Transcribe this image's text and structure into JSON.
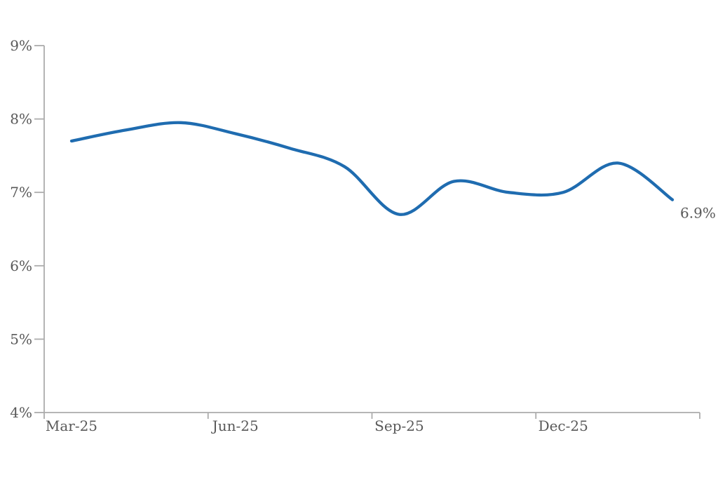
{
  "chart_data": {
    "type": "line",
    "title": "",
    "x": [
      "Mar-25",
      "Apr-25",
      "May-25",
      "Jun-25",
      "Jul-25",
      "Aug-25",
      "Sep-25",
      "Oct-25",
      "Nov-25",
      "Dec-25",
      "Jan-26",
      "Feb-26"
    ],
    "series": [
      {
        "name": "rate",
        "values": [
          7.7,
          7.85,
          7.95,
          7.8,
          7.6,
          7.35,
          6.7,
          7.15,
          7.0,
          7.0,
          7.4,
          6.9
        ]
      }
    ],
    "end_label": "6.9%",
    "y_axis": {
      "min": 4,
      "max": 9,
      "step": 1,
      "tick_labels": [
        "4%",
        "5%",
        "6%",
        "7%",
        "8%",
        "9%"
      ]
    },
    "x_axis": {
      "tick_labels": [
        "Mar-25",
        "Jun-25",
        "Sep-25",
        "Dec-25"
      ],
      "label_every": 3
    },
    "ylim": [
      4,
      9
    ],
    "grid": false,
    "legend": false,
    "smooth": true,
    "colors": {
      "line": "#1F6CB0",
      "axis": "#ACACAC",
      "text": "#595959",
      "background": "#FFFFFF"
    }
  }
}
